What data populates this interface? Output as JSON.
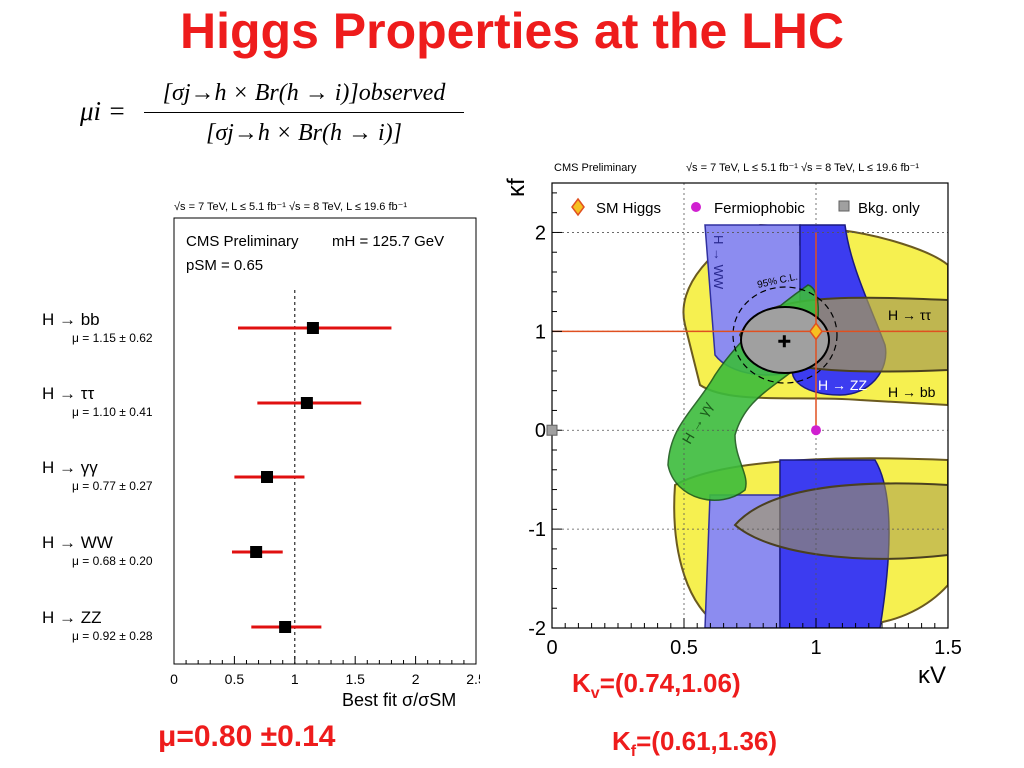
{
  "slide": {
    "title": "Higgs Properties at the LHC",
    "formula": {
      "lhs": "μi =",
      "numerator": "[σj→h × Br(h → i)]observed",
      "denominator": "[σj→h × Br(h → i)]"
    },
    "results": {
      "mu": "μ=0.80 ±0.14",
      "kv_label": "K",
      "kv_sub": "v",
      "kv_value": "=(0.74,1.06)",
      "kf_label": "K",
      "kf_sub": "f",
      "kf_value": "=(0.61,1.36)"
    }
  },
  "chart_data": [
    {
      "type": "scatter",
      "header": "√s = 7 TeV, L ≤ 5.1 fb⁻¹  √s = 8 TeV, L ≤ 19.6 fb⁻¹",
      "title": "CMS Preliminary",
      "annotation_mass": "mH = 125.7 GeV",
      "annotation_psm": "pSM = 0.65",
      "xlabel": "Best fit σ/σSM",
      "xlim": [
        0,
        2.5
      ],
      "xticks": [
        "0",
        "0.5",
        "1",
        "1.5",
        "2",
        "2.5"
      ],
      "reference_line": 1,
      "channels": [
        {
          "label": "H → bb",
          "mu_text": "μ = 1.15 ± 0.62",
          "value": 1.15,
          "low": 0.53,
          "high": 1.8
        },
        {
          "label": "H → ττ",
          "mu_text": "μ = 1.10 ± 0.41",
          "value": 1.1,
          "low": 0.69,
          "high": 1.55
        },
        {
          "label": "H → γγ",
          "mu_text": "μ = 0.77 ± 0.27",
          "value": 0.77,
          "low": 0.5,
          "high": 1.08
        },
        {
          "label": "H → WW",
          "mu_text": "μ = 0.68 ± 0.20",
          "value": 0.68,
          "low": 0.48,
          "high": 0.9
        },
        {
          "label": "H → ZZ",
          "mu_text": "μ = 0.92 ± 0.28",
          "value": 0.92,
          "low": 0.64,
          "high": 1.22
        }
      ]
    },
    {
      "type": "contour",
      "title": "CMS Preliminary",
      "header": "√s = 7 TeV, L ≤ 5.1 fb⁻¹  √s = 8 TeV, L ≤ 19.6 fb⁻¹",
      "xlabel": "κV",
      "ylabel": "κf",
      "xlim": [
        0,
        1.5
      ],
      "ylim": [
        -2,
        2.5
      ],
      "xticks": [
        "0",
        "0.5",
        "1",
        "1.5"
      ],
      "yticks": [
        "-2",
        "-1",
        "0",
        "1",
        "2"
      ],
      "legend": [
        "SM Higgs",
        "Fermiophobic",
        "Bkg. only"
      ],
      "region_labels": [
        "H → ττ",
        "H → bb",
        "H → ZZ",
        "H → γγ",
        "H → WW",
        "95% C.L."
      ],
      "points": {
        "sm_higgs": {
          "x": 1,
          "y": 1
        },
        "fermiophobic": {
          "x": 1,
          "y": 0
        },
        "bkg_only": {
          "x": 0,
          "y": 0
        },
        "best_fit": {
          "x": 0.88,
          "y": 0.9
        }
      },
      "colors": {
        "bb": "#f6f050",
        "ww": "#8c8cf0",
        "zz": "#3c3cf0",
        "gg": "#3cbc3c",
        "combined": "#a0a0a0",
        "sm_line": "#e05020"
      }
    }
  ]
}
